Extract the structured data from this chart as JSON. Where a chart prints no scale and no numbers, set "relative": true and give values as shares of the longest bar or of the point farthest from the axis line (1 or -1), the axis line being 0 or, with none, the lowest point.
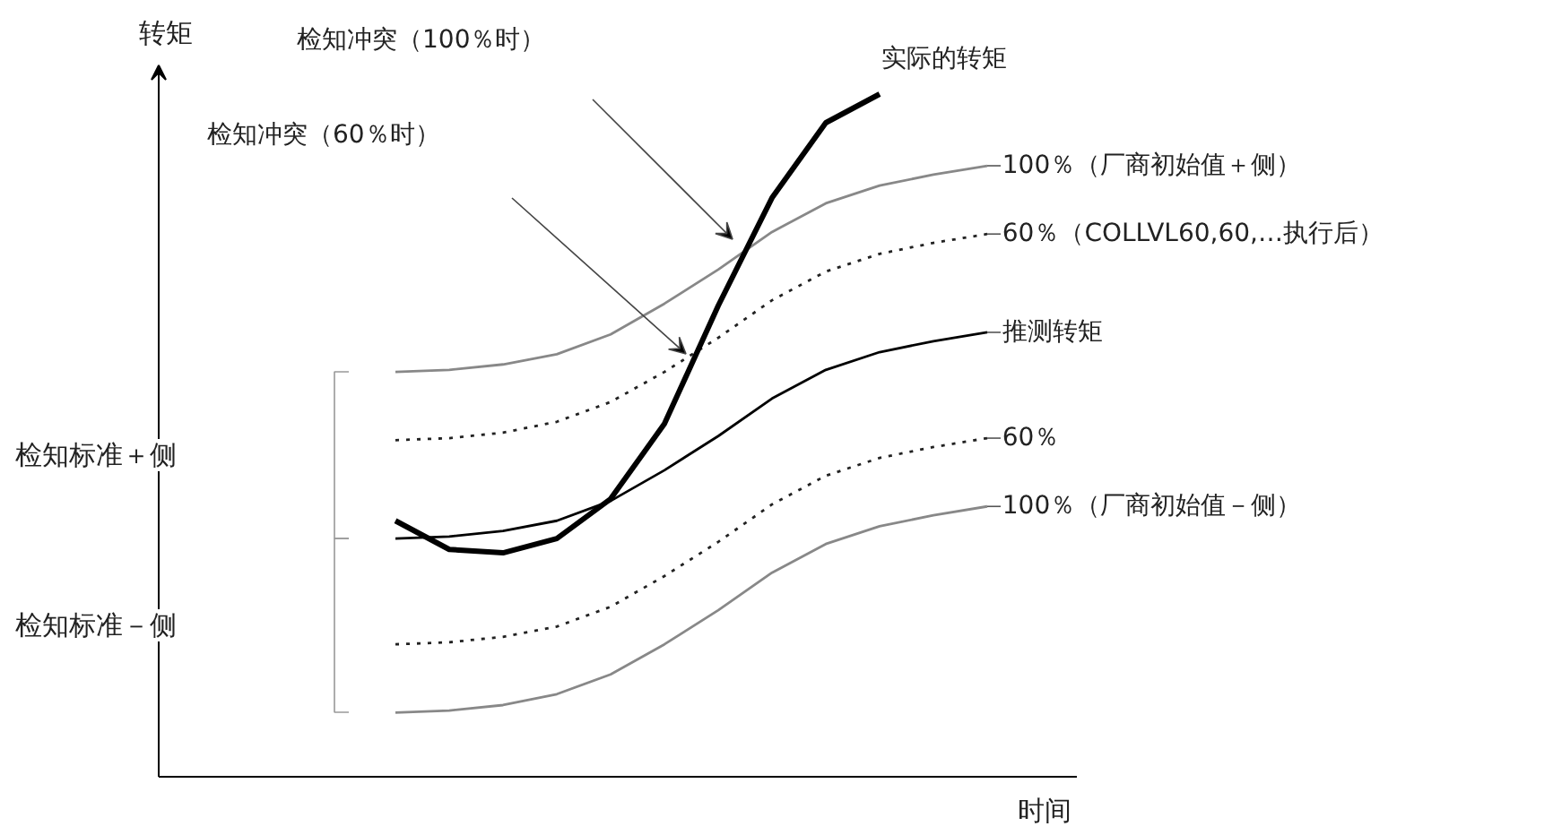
{
  "chart_data": {
    "type": "line",
    "relative": true,
    "xlabel": "时间",
    "grid": false,
    "legend": false,
    "marker": "none",
    "categories": [
      null,
      null,
      null,
      null,
      null,
      null,
      null,
      null,
      null,
      null,
      null,
      null
    ],
    "series": [
      {
        "name": "100％（厂商初始值＋侧）",
        "color": "#888888",
        "line_style": "solid",
        "values": [
          0.593,
          0.596,
          0.604,
          0.619,
          0.648,
          0.693,
          0.743,
          0.798,
          0.84,
          0.866,
          0.882,
          0.895
        ]
      },
      {
        "name": "60％（COLLVL60,60,…执行后）",
        "color": "#222222",
        "line_style": "dotted",
        "values": [
          0.493,
          0.496,
          0.504,
          0.52,
          0.549,
          0.593,
          0.643,
          0.698,
          0.74,
          0.766,
          0.782,
          0.795
        ]
      },
      {
        "name": "推测转矩",
        "color": "#000000",
        "line_style": "solid",
        "values": [
          0.349,
          0.352,
          0.36,
          0.375,
          0.404,
          0.449,
          0.499,
          0.554,
          0.596,
          0.622,
          0.638,
          0.651
        ]
      },
      {
        "name": "60％",
        "color": "#222222",
        "line_style": "dotted",
        "values": [
          0.194,
          0.197,
          0.205,
          0.22,
          0.249,
          0.294,
          0.344,
          0.399,
          0.441,
          0.467,
          0.483,
          0.496
        ]
      },
      {
        "name": "100％（厂商初始值－侧）",
        "color": "#888888",
        "line_style": "solid",
        "values": [
          0.094,
          0.097,
          0.105,
          0.121,
          0.15,
          0.194,
          0.244,
          0.299,
          0.341,
          0.367,
          0.383,
          0.396
        ]
      },
      {
        "name": "实际的转矩",
        "color": "#000000",
        "line_style": "solid",
        "values": [
          0.375,
          0.333,
          0.328,
          0.349,
          0.407,
          0.517,
          0.69,
          0.848,
          0.958,
          1.0,
          null,
          null
        ]
      }
    ],
    "annotations": [
      "检知冲突（100％时）",
      "检知冲突（60％时）",
      "检知标准＋侧",
      "检知标准－侧",
      "转矩"
    ]
  }
}
